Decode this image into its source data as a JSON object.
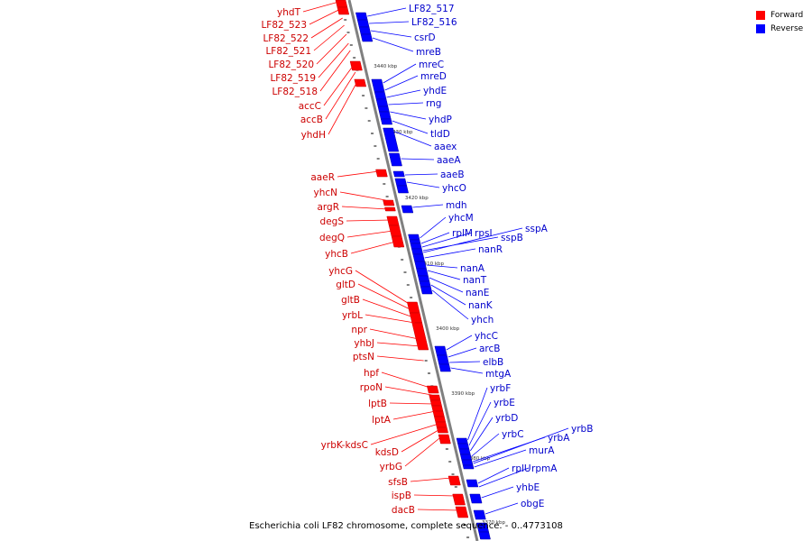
{
  "caption": "Escherichia coli LF82 chromosome, complete sequence. - 0..4773108",
  "legend": [
    {
      "label": "Forward",
      "color": "#ff0000"
    },
    {
      "label": "Reverse",
      "color": "#0000ff"
    }
  ],
  "colors": {
    "forward": "#ff0000",
    "reverse": "#0000ff",
    "axis": "#808080"
  },
  "ticks": [
    "3440 kbp",
    "3430 kbp",
    "3420 kbp",
    "3410 kbp",
    "3400 kbp",
    "3390 kbp",
    "3380 kbp",
    "3370 kbp"
  ],
  "forward_genes": [
    "yhdT",
    "LF82_523",
    "LF82_522",
    "LF82_521",
    "LF82_520",
    "LF82_519",
    "LF82_518",
    "accC",
    "accB",
    "yhdH",
    "aaeR",
    "yhcN",
    "argR",
    "degS",
    "degQ",
    "yhcB",
    "yhcG",
    "gltD",
    "gltB",
    "yrbL",
    "npr",
    "yhbJ",
    "ptsN",
    "hpf",
    "rpoN",
    "lptB",
    "lptA",
    "yrbK-kdsC",
    "kdsD",
    "yrbG",
    "sfsB",
    "ispB",
    "dacB"
  ],
  "reverse_genes": [
    "LF82_517",
    "LF82_516",
    "csrD",
    "mreB",
    "mreC",
    "mreD",
    "yhdE",
    "rng",
    "yhdP",
    "tldD",
    "aaex",
    "aaeA",
    "aaeB",
    "yhcO",
    "mdh",
    "yhcM",
    "rplM",
    "rpsI",
    "sspB",
    "sspA",
    "nanR",
    "nanA",
    "nanT",
    "nanE",
    "nanK",
    "yhch",
    "yhcC",
    "arcB",
    "elbB",
    "mtgA",
    "yrbF",
    "yrbE",
    "yrbD",
    "yrbC",
    "yrbA",
    "yrbB",
    "murA",
    "rplU",
    "rpmA",
    "yhbE",
    "obgE"
  ]
}
